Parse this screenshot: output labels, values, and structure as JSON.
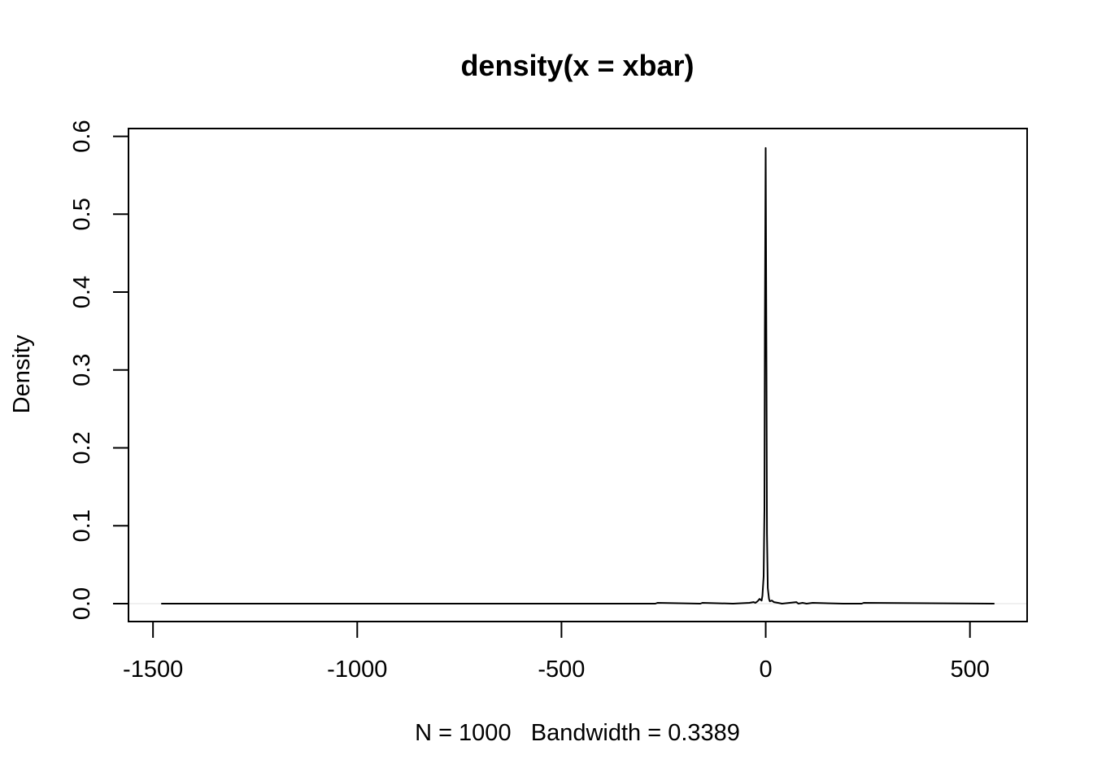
{
  "chart_data": {
    "type": "line",
    "title": "density(x = xbar)",
    "xlabel": "N = 1000   Bandwidth = 0.3389",
    "ylabel": "Density",
    "xlim": [
      -1560,
      640
    ],
    "ylim": [
      -0.023,
      0.61
    ],
    "x_ticks": [
      -1500,
      -1000,
      -500,
      0,
      500
    ],
    "x_tick_labels": [
      "-1500",
      "-1000",
      "-500",
      "0",
      "500"
    ],
    "y_ticks": [
      0.0,
      0.1,
      0.2,
      0.3,
      0.4,
      0.5,
      0.6
    ],
    "y_tick_labels": [
      "0.0",
      "0.1",
      "0.2",
      "0.3",
      "0.4",
      "0.5",
      "0.6"
    ],
    "grid": false,
    "baseline": 0,
    "series": [
      {
        "x": [
          -1480,
          -1000,
          -500,
          -270,
          -265,
          -160,
          -155,
          -80,
          -40,
          -30,
          -25,
          -20,
          -15,
          -10,
          -8,
          -5,
          -3,
          -2,
          0,
          2,
          3,
          5,
          8,
          10,
          15,
          20,
          30,
          40,
          75,
          80,
          90,
          100,
          115,
          190,
          235,
          240,
          560
        ],
        "y": [
          0.0,
          0.0,
          0.0,
          0.0,
          0.001,
          0.0,
          0.001,
          0.0,
          0.001,
          0.002,
          0.001,
          0.003,
          0.006,
          0.004,
          0.01,
          0.035,
          0.12,
          0.35,
          0.585,
          0.3,
          0.09,
          0.02,
          0.006,
          0.003,
          0.004,
          0.002,
          0.001,
          0.0,
          0.002,
          0.0,
          0.001,
          0.0,
          0.001,
          0.0,
          0.0,
          0.001,
          0.0
        ]
      }
    ]
  }
}
